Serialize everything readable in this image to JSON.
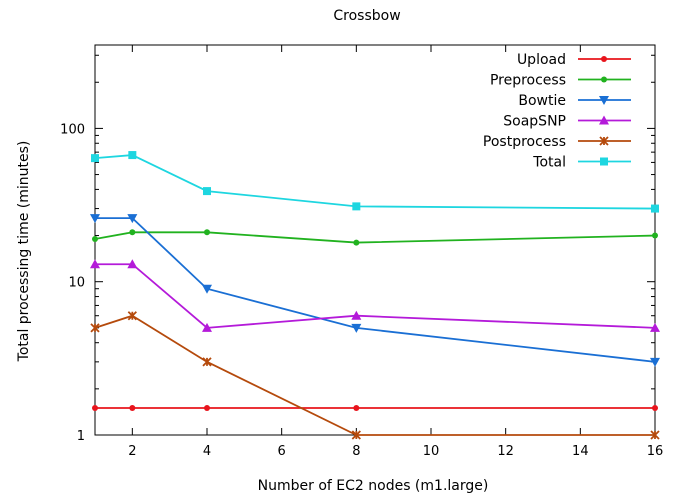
{
  "chart_data": {
    "type": "line",
    "title": "Crossbow",
    "xlabel": "Number of EC2 nodes (m1.large)",
    "ylabel": "Total processing time (minutes)",
    "xlim": [
      1,
      16
    ],
    "ylim": [
      1,
      350
    ],
    "y_scale": "log",
    "x_ticks": [
      2,
      4,
      6,
      8,
      10,
      12,
      14,
      16
    ],
    "y_ticks": [
      1,
      10,
      100
    ],
    "grid": false,
    "legend_position": "top-right",
    "series": [
      {
        "name": "Upload",
        "color": "#e8141c",
        "marker": "circle",
        "x": [
          1,
          2,
          4,
          8,
          16
        ],
        "y": [
          1.5,
          1.5,
          1.5,
          1.5,
          1.5
        ]
      },
      {
        "name": "Preprocess",
        "color": "#21b21f",
        "marker": "circle",
        "x": [
          1,
          2,
          4,
          8,
          16
        ],
        "y": [
          19,
          21,
          21,
          18,
          20
        ]
      },
      {
        "name": "Bowtie",
        "color": "#1a6fd4",
        "marker": "triangle-down",
        "x": [
          1,
          2,
          4,
          8,
          16
        ],
        "y": [
          26,
          26,
          9,
          5,
          3
        ]
      },
      {
        "name": "SoapSNP",
        "color": "#b41ad9",
        "marker": "triangle-up",
        "x": [
          1,
          2,
          4,
          8,
          16
        ],
        "y": [
          13,
          13,
          5,
          6,
          5
        ]
      },
      {
        "name": "Postprocess",
        "color": "#b54a0c",
        "marker": "star",
        "x": [
          1,
          2,
          4,
          8,
          16
        ],
        "y": [
          5,
          6,
          3,
          1,
          1
        ]
      },
      {
        "name": "Total",
        "color": "#1ed6e0",
        "marker": "square",
        "x": [
          1,
          2,
          4,
          8,
          16
        ],
        "y": [
          64,
          67,
          39,
          31,
          30
        ]
      }
    ]
  }
}
